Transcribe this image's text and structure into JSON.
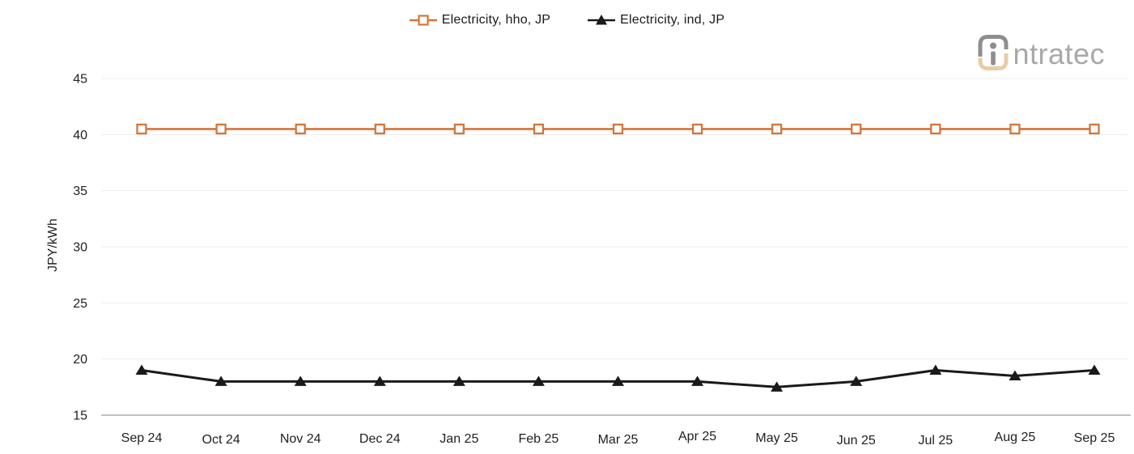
{
  "legend": {
    "items": [
      {
        "label": "Electricity, hho, JP",
        "color": "#D4753B",
        "marker": "square-hollow"
      },
      {
        "label": "Electricity, ind, JP",
        "color": "#1A1A1A",
        "marker": "triangle-filled"
      }
    ]
  },
  "logo": {
    "brand": "intratec",
    "wordmark_suffix": "ntratec"
  },
  "colors": {
    "series_hho": "#D4753B",
    "series_ind": "#1A1A1A",
    "gridline": "#EDEDED",
    "axis_line": "#9B9B9B",
    "tick_label": "#212121",
    "logo_gray": "#8E8E8E",
    "logo_tan": "#EACBA5"
  },
  "chart_data": {
    "type": "line",
    "title": "",
    "xlabel": "",
    "ylabel": "JPY/kWh",
    "categories": [
      "Sep 24",
      "Oct 24",
      "Nov 24",
      "Dec 24",
      "Jan 25",
      "Feb 25",
      "Mar 25",
      "Apr 25",
      "May 25",
      "Jun 25",
      "Jul 25",
      "Aug 25",
      "Sep 25"
    ],
    "series": [
      {
        "name": "Electricity, hho, JP",
        "color": "#D4753B",
        "marker": "square-hollow",
        "values": [
          40.5,
          40.5,
          40.5,
          40.5,
          40.5,
          40.5,
          40.5,
          40.5,
          40.5,
          40.5,
          40.5,
          40.5,
          40.5
        ]
      },
      {
        "name": "Electricity, ind, JP",
        "color": "#1A1A1A",
        "marker": "triangle-filled",
        "values": [
          19,
          18,
          18,
          18,
          18,
          18,
          18,
          18,
          17.5,
          18,
          19,
          18.5,
          19
        ]
      }
    ],
    "ylim": [
      15,
      45
    ],
    "yticks": [
      15,
      20,
      25,
      30,
      35,
      40,
      45
    ],
    "grid": true,
    "legend_position": "top-center"
  }
}
